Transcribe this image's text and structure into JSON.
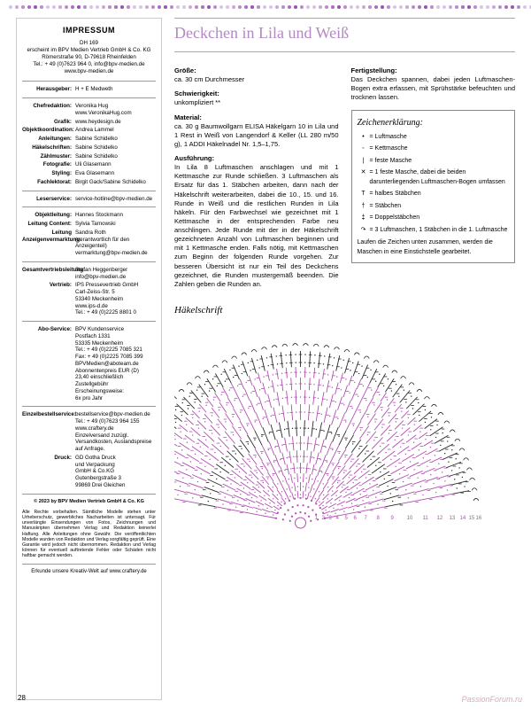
{
  "colors": {
    "accent": "#b388c4",
    "dots": [
      "#d9c5e3",
      "#c9a8d6",
      "#b98bc9",
      "#a96ebc",
      "#9951af",
      "#b98bc9",
      "#d9c5e3"
    ],
    "chart_main": "#b050b0",
    "chart_dark": "#2a2a2a"
  },
  "impressum": {
    "heading": "IMPRESSUM",
    "header": {
      "line1": "DH 169",
      "line2": "erscheint im BPV Medien Vertrieb GmbH & Co. KG",
      "line3": "Römerstraße 90, D-79618 Rheinfelden",
      "line4": "Tel.: + 49 (0)7623 964 0, info@bpv-medien.de",
      "line5": "www.bpv-medien.de"
    },
    "herausgeber_label": "Herausgeber:",
    "herausgeber": "H + E Medweth",
    "rows1": [
      {
        "l": "Chefredaktion:",
        "v": "Veronika Hug\nwww.VeronikaHug.com"
      },
      {
        "l": "Grafik:",
        "v": "www.heydesign.de"
      },
      {
        "l": "Objektkoordination:",
        "v": "Andrea Lammel"
      },
      {
        "l": "Anleitungen:",
        "v": "Sabine Schidelko"
      },
      {
        "l": "Häkelschriften:",
        "v": "Sabine Schidelko"
      },
      {
        "l": "Zählmuster:",
        "v": "Sabine Schidelko"
      },
      {
        "l": "Fotografie:",
        "v": "Uli Glasemann"
      },
      {
        "l": "Styling:",
        "v": "Eva Glasemann"
      },
      {
        "l": "Fachlektorat:",
        "v": "Birgit Gack/Sabine Schidelko"
      }
    ],
    "leserservice": {
      "l": "Leserservice:",
      "v": "service-hotline@bpv-medien.de"
    },
    "rows2": [
      {
        "l": "Objektleitung:",
        "v": "Hannes Stockmann"
      },
      {
        "l": "Leitung Content:",
        "v": "Sylvia Tarnowski"
      },
      {
        "l": "Leitung Anzeigenvermarktung:",
        "v": "Sandra Roth\n(verantwortlich für den\nAnzeigenteil)\nvermarktung@bpv-medien.de"
      }
    ],
    "rows3": [
      {
        "l": "Gesamtvertriebsleitung:",
        "v": "Stefan Heggenberger\ninfo@bpv-medien.de"
      },
      {
        "l": "Vertrieb:",
        "v": "IPS Pressevertrieb GmbH\nCarl-Zeiss-Str. 5\n53340 Meckenheim\nwww.ips-d.de\nTel.: + 49 (0)2225 8801 0"
      }
    ],
    "abo": {
      "l": "Abo-Service:",
      "v": "BPV Kundenservice\nPostfach 1331\n53335 Meckenheim\nTel.: + 49 (0)2225 7085 321\nFax: + 49 (0)2225 7085 399\nBPVMedien@aboteam.de\nAbonnentenpreis EUR (D)\n23,40 einschließlich\nZustellgebühr\nErscheinungsweise:\n6x pro Jahr"
    },
    "einzel": {
      "l": "Einzelbestellservice:",
      "v": "bestellservice@bpv-medien.de\nTel.: + 49 (0)7623 964 155\nwww.craftery.de\nEinzelversand zuzügl.\nVersandkosten, Auslandspreise\nauf Anfrage."
    },
    "druck": {
      "l": "Druck:",
      "v": "GD Gotha Druck\nund Verpackung\nGmbH & Co.KG\nGutenbergstraße 3\n99869 Drei Gleichen"
    },
    "copyright": "© 2023 by BPV Medien Vertrieb GmbH & Co. KG",
    "legal": "Alle Rechte vorbehalten. Sämtliche Modelle stehen unter Urheberschutz, gewerbliches Nacharbeiten ist untersagt. Für unverlängte Einsendungen von Fotos, Zeichnungen und Manuskripten übernehmen Verlag und Redaktion keinerlei Haftung. Alle Anleitungen ohne Gewähr. Die veröffentlichten Modelle wurden von Redaktion und Verlag sorgfältig geprüft. Eine Garantie wird jedoch nicht übernommen. Redaktion und Verlag können für eventuell auftretende Fehler oder Schäden nicht haftbar gemacht werden.",
    "kreativ": "Erkunde unsere Kreativ-Welt auf www.craftery.de"
  },
  "main": {
    "title": "Deckchen in Lila und Weiß",
    "col1": {
      "groesse_l": "Größe:",
      "groesse": "ca. 30 cm Durchmesser",
      "schwierig_l": "Schwierigkeit:",
      "schwierig": "unkompliziert **",
      "material_l": "Material:",
      "material": "ca. 30 g Baumwollgarn ELISA Häkelgarn 10 in Lila und 1 Rest in Weiß von Langendorf & Keller (LL 280 m/50 g), 1 ADDI Häkelnadel Nr. 1,5–1,75.",
      "ausfuehrung_l": "Ausführung:",
      "ausfuehrung": "In Lila 8 Luftmaschen anschlagen und mit 1 Kettmasche zur Runde schließen. 3 Luftmaschen als Ersatz für das 1. Stäbchen arbeiten, dann nach der Häkelschrift weiterarbeiten, dabei die 10., 15. und 16. Runde in Weiß und die restlichen Runden in Lila häkeln. Für den Farbwechsel wie gezeichnet mit 1 Kettmasche in der entsprechenden Farbe neu anschlingen. Jede Runde mit der in der Häkelschrift gezeichneten Anzahl von Luftmaschen beginnen und mit 1 Kettmasche enden. Falls nötig, mit Kettmaschen zum Beginn der folgenden Runde vorgehen. Zur besseren Übersicht ist nur ein Teil des Deckchens gezeichnet, die Runden mustergemäß beenden. Die Zahlen geben die Runden an."
    },
    "col2": {
      "fertig_l": "Fertigstellung:",
      "fertig": "Das Deckchen spannen, dabei jeden Luftmaschen-Bogen extra erfassen, mit Sprühstärke befeuchten und trocknen lassen."
    },
    "legend": {
      "title": "Zeichenerklärung:",
      "rows": [
        {
          "sym": "•",
          "txt": "= Luftmasche"
        },
        {
          "sym": "◦",
          "txt": "= Kettmasche"
        },
        {
          "sym": "|",
          "txt": "= feste Masche"
        },
        {
          "sym": "✕",
          "txt": "= 1 feste Masche, dabei die beiden darunterliegenden Luftmaschen-Bogen umfassen"
        },
        {
          "sym": "T",
          "txt": "= halbes Stäbchen"
        },
        {
          "sym": "†",
          "txt": "= Stäbchen"
        },
        {
          "sym": "‡",
          "txt": "= Doppelstäbchen"
        },
        {
          "sym": "↷",
          "txt": "= 3 Luftmaschen, 1 Stäbchen in die 1. Luftmasche"
        }
      ],
      "footer": "Laufen die Zeichen unten zusammen, werden die Maschen in eine Einstichstelle gearbeitet."
    },
    "chart_title": "Häkelschrift"
  },
  "pageNum": "28",
  "watermark": "PassionForum.ru"
}
